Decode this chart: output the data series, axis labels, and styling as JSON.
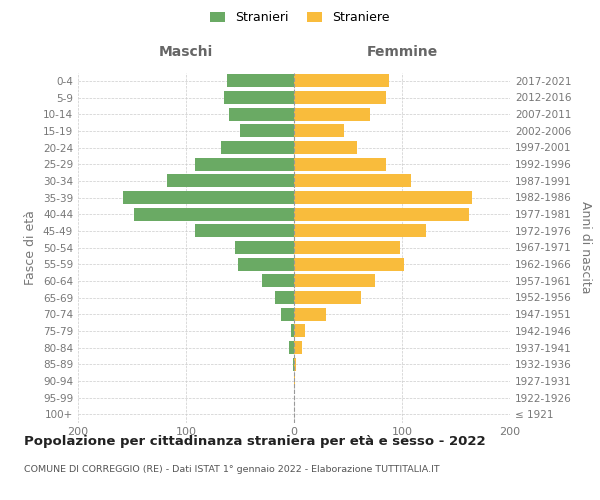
{
  "age_groups": [
    "100+",
    "95-99",
    "90-94",
    "85-89",
    "80-84",
    "75-79",
    "70-74",
    "65-69",
    "60-64",
    "55-59",
    "50-54",
    "45-49",
    "40-44",
    "35-39",
    "30-34",
    "25-29",
    "20-24",
    "15-19",
    "10-14",
    "5-9",
    "0-4"
  ],
  "birth_years": [
    "≤ 1921",
    "1922-1926",
    "1927-1931",
    "1932-1936",
    "1937-1941",
    "1942-1946",
    "1947-1951",
    "1952-1956",
    "1957-1961",
    "1962-1966",
    "1967-1971",
    "1972-1976",
    "1977-1981",
    "1982-1986",
    "1987-1991",
    "1992-1996",
    "1997-2001",
    "2002-2006",
    "2007-2011",
    "2012-2016",
    "2017-2021"
  ],
  "maschi": [
    0,
    0,
    0,
    1,
    5,
    3,
    12,
    18,
    30,
    52,
    55,
    92,
    148,
    158,
    118,
    92,
    68,
    50,
    60,
    65,
    62
  ],
  "femmine": [
    0,
    0,
    1,
    2,
    7,
    10,
    30,
    62,
    75,
    102,
    98,
    122,
    162,
    165,
    108,
    85,
    58,
    46,
    70,
    85,
    88
  ],
  "male_color": "#6aaa64",
  "female_color": "#f9bc3c",
  "background_color": "#ffffff",
  "grid_color": "#cccccc",
  "title": "Popolazione per cittadinanza straniera per età e sesso - 2022",
  "subtitle": "COMUNE DI CORREGGIO (RE) - Dati ISTAT 1° gennaio 2022 - Elaborazione TUTTITALIA.IT",
  "xlabel_left": "Maschi",
  "xlabel_right": "Femmine",
  "ylabel_left": "Fasce di età",
  "ylabel_right": "Anni di nascita",
  "legend_male": "Stranieri",
  "legend_female": "Straniere",
  "xlim": 200
}
